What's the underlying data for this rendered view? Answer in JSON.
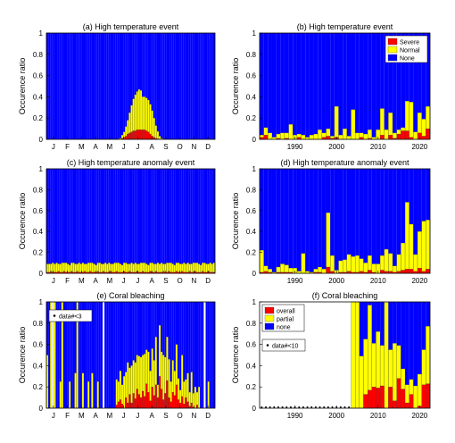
{
  "colors": {
    "red": "#ff0000",
    "yellow": "#ffff00",
    "blue": "#0000ff"
  },
  "chart_data": [
    {
      "type": "bar",
      "title": "(a) High temperature event",
      "ylabel": "Occurence ratio",
      "ylim": [
        0,
        1
      ],
      "yticks": [
        "0",
        "0.2",
        "0.4",
        "0.6",
        "0.8",
        "1"
      ],
      "month_labels": [
        "J",
        "F",
        "M",
        "A",
        "M",
        "J",
        "J",
        "A",
        "S",
        "O",
        "N",
        "D"
      ],
      "stacking": "red at bottom, yellow above red, blue fills remainder to 1",
      "series": [
        {
          "name": "Severe",
          "color": "red",
          "values": [
            0,
            0,
            0,
            0,
            0,
            0,
            0,
            0,
            0,
            0,
            0,
            0,
            0,
            0,
            0,
            0,
            0,
            0,
            0,
            0,
            0,
            0,
            0,
            0,
            0,
            0,
            0,
            0,
            0,
            0,
            0,
            0,
            0,
            0,
            0,
            0,
            0,
            0,
            0,
            0,
            0.01,
            0.02,
            0.03,
            0.05,
            0.06,
            0.07,
            0.08,
            0.08,
            0.09,
            0.09,
            0.09,
            0.09,
            0.09,
            0.08,
            0.07,
            0.05,
            0.03,
            0.02,
            0.01,
            0.005,
            0,
            0,
            0,
            0,
            0,
            0,
            0,
            0,
            0,
            0,
            0,
            0,
            0,
            0,
            0,
            0,
            0,
            0,
            0,
            0,
            0,
            0,
            0,
            0,
            0,
            0,
            0,
            0,
            0,
            0
          ]
        },
        {
          "name": "Normal",
          "color": "yellow",
          "values": [
            0,
            0,
            0,
            0,
            0,
            0,
            0,
            0,
            0,
            0,
            0,
            0,
            0,
            0,
            0,
            0,
            0,
            0,
            0,
            0,
            0,
            0,
            0,
            0,
            0,
            0,
            0,
            0,
            0,
            0,
            0,
            0,
            0,
            0,
            0,
            0,
            0,
            0,
            0.005,
            0.01,
            0.03,
            0.05,
            0.09,
            0.13,
            0.19,
            0.25,
            0.3,
            0.34,
            0.36,
            0.38,
            0.37,
            0.31,
            0.31,
            0.31,
            0.3,
            0.28,
            0.24,
            0.18,
            0.12,
            0.07,
            0.03,
            0.01,
            0.005,
            0,
            0,
            0,
            0,
            0,
            0,
            0,
            0,
            0,
            0,
            0,
            0,
            0,
            0,
            0,
            0,
            0,
            0,
            0,
            0,
            0,
            0,
            0,
            0,
            0,
            0,
            0
          ]
        }
      ]
    },
    {
      "type": "bar",
      "title": "(b) High temperature event",
      "ylabel": "Occurence ratio",
      "ylim": [
        0,
        1
      ],
      "yticks": [
        "0",
        "0.2",
        "0.4",
        "0.6",
        "0.8",
        "1"
      ],
      "x": [
        1982,
        1983,
        1984,
        1985,
        1986,
        1987,
        1988,
        1989,
        1990,
        1991,
        1992,
        1993,
        1994,
        1995,
        1996,
        1997,
        1998,
        1999,
        2000,
        2001,
        2002,
        2003,
        2004,
        2005,
        2006,
        2007,
        2008,
        2009,
        2010,
        2011,
        2012,
        2013,
        2014,
        2015,
        2016,
        2017,
        2018,
        2019,
        2020,
        2021,
        2022
      ],
      "xticks": [
        "1990",
        "2000",
        "2010",
        "2020"
      ],
      "legend": [
        "Severe",
        "Normal",
        "None"
      ],
      "legend_position": "top-right",
      "series": [
        {
          "name": "Severe",
          "color": "red",
          "values": [
            0.02,
            0.04,
            0,
            0,
            0.01,
            0,
            0.01,
            0,
            0,
            0.02,
            0,
            0,
            0,
            0,
            0,
            0.02,
            0.03,
            0.01,
            0.02,
            0,
            0,
            0,
            0,
            0,
            0.02,
            0,
            0.01,
            0,
            0,
            0.04,
            0,
            0.04,
            0.01,
            0.05,
            0.08,
            0.08,
            0.02,
            0,
            0.06,
            0.03,
            0.1
          ]
        },
        {
          "name": "Normal",
          "color": "yellow",
          "values": [
            0.02,
            0.07,
            0.06,
            0.02,
            0.04,
            0.06,
            0.05,
            0.14,
            0.04,
            0.03,
            0.04,
            0.02,
            0.04,
            0.05,
            0.09,
            0.04,
            0.07,
            0.02,
            0.29,
            0.04,
            0.1,
            0.03,
            0.28,
            0.06,
            0.04,
            0.05,
            0.08,
            0.02,
            0.09,
            0.25,
            0.09,
            0.21,
            0.05,
            0.04,
            0.03,
            0.28,
            0.33,
            0.07,
            0.19,
            0.16,
            0.21
          ]
        }
      ]
    },
    {
      "type": "bar",
      "title": "(c) High temperature anomaly event",
      "ylabel": "Occurence ratio",
      "ylim": [
        0,
        1
      ],
      "yticks": [
        "0",
        "0.2",
        "0.4",
        "0.6",
        "0.8",
        "1"
      ],
      "month_labels": [
        "J",
        "F",
        "M",
        "A",
        "M",
        "J",
        "J",
        "A",
        "S",
        "O",
        "N",
        "D"
      ],
      "series": [
        {
          "name": "Severe",
          "color": "red",
          "values": [
            0.01,
            0.01,
            0.02,
            0.01,
            0.01,
            0.01,
            0.02,
            0.01,
            0.01,
            0.02,
            0.01,
            0.01,
            0.01,
            0.02,
            0.01,
            0.01,
            0.02,
            0.01,
            0.01,
            0.01,
            0.02,
            0.01,
            0.01,
            0.02,
            0.01,
            0.01,
            0.01,
            0.02,
            0.01,
            0.01,
            0.02,
            0.01,
            0.01,
            0.01,
            0.02,
            0.01,
            0.01,
            0.02,
            0.01,
            0.01,
            0.01,
            0.02,
            0.01,
            0.01,
            0.02,
            0.01,
            0.01,
            0.01,
            0.02,
            0.01,
            0.01,
            0.02,
            0.01,
            0.01,
            0.01,
            0.02,
            0.01,
            0.01,
            0.02,
            0.01,
            0.01,
            0.01,
            0.02,
            0.01,
            0.01,
            0.02,
            0.01,
            0.01,
            0.01,
            0.02,
            0.01,
            0.01,
            0.02,
            0.01,
            0.01,
            0.01,
            0.02,
            0.01,
            0.01,
            0.02,
            0.01,
            0.01,
            0.01,
            0.02,
            0.01,
            0.01,
            0.02,
            0.01,
            0.01,
            0.01
          ]
        },
        {
          "name": "Normal",
          "color": "yellow",
          "values": [
            0.08,
            0.08,
            0.07,
            0.09,
            0.08,
            0.09,
            0.07,
            0.08,
            0.09,
            0.08,
            0.09,
            0.08,
            0.07,
            0.08,
            0.09,
            0.08,
            0.07,
            0.09,
            0.08,
            0.09,
            0.07,
            0.08,
            0.09,
            0.08,
            0.09,
            0.08,
            0.07,
            0.08,
            0.09,
            0.08,
            0.07,
            0.09,
            0.08,
            0.09,
            0.07,
            0.08,
            0.09,
            0.08,
            0.09,
            0.08,
            0.07,
            0.08,
            0.09,
            0.08,
            0.07,
            0.09,
            0.08,
            0.09,
            0.07,
            0.08,
            0.09,
            0.08,
            0.09,
            0.08,
            0.07,
            0.08,
            0.09,
            0.08,
            0.07,
            0.09,
            0.08,
            0.09,
            0.07,
            0.08,
            0.09,
            0.08,
            0.09,
            0.08,
            0.07,
            0.08,
            0.09,
            0.08,
            0.07,
            0.09,
            0.08,
            0.09,
            0.07,
            0.08,
            0.09,
            0.08,
            0.09,
            0.08,
            0.07,
            0.08,
            0.09,
            0.08,
            0.07,
            0.09,
            0.08,
            0.09
          ]
        }
      ]
    },
    {
      "type": "bar",
      "title": "(d) High temperature anomaly event",
      "ylabel": "Occurence ratio",
      "ylim": [
        0,
        1
      ],
      "yticks": [
        "0",
        "0.2",
        "0.4",
        "0.6",
        "0.8",
        "1"
      ],
      "x": [
        1982,
        1983,
        1984,
        1985,
        1986,
        1987,
        1988,
        1989,
        1990,
        1991,
        1992,
        1993,
        1994,
        1995,
        1996,
        1997,
        1998,
        1999,
        2000,
        2001,
        2002,
        2003,
        2004,
        2005,
        2006,
        2007,
        2008,
        2009,
        2010,
        2011,
        2012,
        2013,
        2014,
        2015,
        2016,
        2017,
        2018,
        2019,
        2020,
        2021,
        2022
      ],
      "xticks": [
        "1990",
        "2000",
        "2010",
        "2020"
      ],
      "series": [
        {
          "name": "Severe",
          "color": "red",
          "values": [
            0.01,
            0.02,
            0.01,
            0,
            0.01,
            0.01,
            0.01,
            0.01,
            0,
            0,
            0,
            0,
            0,
            0.01,
            0.01,
            0,
            0.06,
            0.02,
            0,
            0.01,
            0.01,
            0.02,
            0.01,
            0.01,
            0.02,
            0.01,
            0.03,
            0.01,
            0,
            0.03,
            0.02,
            0.02,
            0.01,
            0.02,
            0.03,
            0.04,
            0.04,
            0.02,
            0.05,
            0.02,
            0.04
          ]
        },
        {
          "name": "Normal",
          "color": "yellow",
          "values": [
            0.21,
            0.05,
            0.03,
            0.01,
            0.05,
            0.08,
            0.07,
            0.04,
            0.05,
            0.02,
            0.19,
            0.02,
            0.01,
            0.03,
            0.05,
            0.04,
            0.52,
            0.15,
            0.03,
            0.11,
            0.12,
            0.16,
            0.15,
            0.16,
            0.12,
            0.09,
            0.14,
            0.08,
            0.09,
            0.14,
            0.21,
            0.17,
            0.06,
            0.16,
            0.26,
            0.64,
            0.43,
            0.16,
            0.35,
            0.48,
            0.47
          ]
        }
      ]
    },
    {
      "type": "bar",
      "title": "(e) Coral bleaching",
      "ylabel": "Occurence ratio",
      "ylim": [
        0,
        1
      ],
      "yticks": [
        "0",
        "0.2",
        "0.4",
        "0.6",
        "0.8",
        "1"
      ],
      "month_labels": [
        "J",
        "F",
        "M",
        "A",
        "M",
        "J",
        "J",
        "A",
        "S",
        "O",
        "N",
        "D"
      ],
      "legend": [
        "data#<3"
      ],
      "legend_position": "top-left",
      "white_columns": [
        3,
        30,
        84
      ],
      "series": [
        {
          "name": "overall",
          "color": "red",
          "values": [
            0,
            0,
            0,
            0,
            0,
            0,
            0,
            0,
            0,
            0,
            0,
            0,
            0,
            0,
            0,
            0,
            0,
            0,
            0,
            0,
            0,
            0,
            0,
            0,
            0,
            0,
            0,
            0,
            0,
            0,
            0,
            0,
            0,
            0,
            0,
            0,
            0,
            0.03,
            0.06,
            0.08,
            0.04,
            0,
            0.1,
            0.05,
            0.13,
            0.05,
            0.14,
            0.09,
            0.18,
            0.13,
            0.1,
            0.16,
            0.11,
            0.23,
            0.15,
            0.07,
            0.2,
            0.12,
            0.22,
            0.1,
            0.3,
            0.18,
            0.08,
            0.14,
            0.26,
            0.1,
            0.06,
            0.15,
            0.12,
            0.22,
            0.08,
            0.05,
            0.11,
            0.04,
            0.1,
            0.06,
            0.02,
            0.05,
            0.01,
            0,
            0.03,
            0,
            0,
            0,
            0,
            0,
            0,
            0,
            0,
            0
          ]
        },
        {
          "name": "partial",
          "color": "yellow",
          "values": [
            0.5,
            0,
            1,
            0,
            1,
            0,
            0,
            0.25,
            1,
            0,
            0,
            0,
            0.25,
            0,
            0,
            0.33,
            1,
            0,
            0,
            0.33,
            0,
            0,
            0.25,
            0,
            0.33,
            0,
            0,
            0.25,
            0,
            0,
            0,
            0,
            0,
            0,
            0,
            0,
            0,
            0.24,
            0.19,
            0.27,
            0.18,
            0.3,
            0.24,
            0.38,
            0.25,
            0.35,
            0.31,
            0.34,
            0.32,
            0.36,
            0.38,
            0.34,
            0.4,
            0.32,
            0.38,
            0.28,
            0.36,
            0.33,
            0.45,
            0.12,
            0.48,
            0.35,
            0.42,
            0.34,
            0.41,
            0.36,
            0.19,
            0.3,
            0.23,
            0.38,
            0.2,
            0.12,
            0.39,
            0.21,
            0.17,
            0.27,
            0.13,
            0.29,
            0.13,
            0.2,
            0.12,
            0.2,
            0,
            0,
            0,
            0,
            0.25,
            0,
            0,
            0
          ]
        }
      ]
    },
    {
      "type": "bar",
      "title": "(f) Coral bleaching",
      "ylabel": "Occurence ratio",
      "ylim": [
        0,
        1
      ],
      "yticks": [
        "0",
        "0.2",
        "0.4",
        "0.6",
        "0.8",
        "1"
      ],
      "x": [
        1982,
        1983,
        1984,
        1985,
        1986,
        1987,
        1988,
        1989,
        1990,
        1991,
        1992,
        1993,
        1994,
        1995,
        1996,
        1997,
        1998,
        1999,
        2000,
        2001,
        2002,
        2003,
        2004,
        2005,
        2006,
        2007,
        2008,
        2009,
        2010,
        2011,
        2012,
        2013,
        2014,
        2015,
        2016,
        2017,
        2018,
        2019,
        2020,
        2021,
        2022
      ],
      "xticks": [
        "1990",
        "2000",
        "2010",
        "2020"
      ],
      "legend": [
        "overall",
        "partial",
        "none"
      ],
      "legend_position": "top-left",
      "note": "data#<10",
      "no_data_years": [
        1982,
        1983,
        1984,
        1985,
        1986,
        1987,
        1988,
        1989,
        1990,
        1991,
        1992,
        1993,
        1994,
        1995,
        1996,
        1997,
        1998,
        1999,
        2000,
        2001,
        2002,
        2003
      ],
      "series": [
        {
          "name": "overall",
          "color": "red",
          "values": [
            0,
            0,
            0,
            0,
            0,
            0,
            0,
            0,
            0,
            0,
            0,
            0,
            0,
            0,
            0,
            0,
            0,
            0,
            0,
            0,
            0,
            0,
            0,
            0,
            0,
            0.13,
            0.17,
            0.2,
            0.19,
            0.21,
            0,
            0.2,
            0.07,
            0.28,
            0.18,
            0.05,
            0.13,
            0,
            0.02,
            0.22,
            0.23
          ]
        },
        {
          "name": "partial",
          "color": "yellow",
          "values": [
            0,
            0,
            0,
            0,
            0,
            0,
            0,
            0,
            0,
            0,
            0,
            0,
            0,
            0,
            0,
            0,
            0,
            0,
            0,
            0,
            0,
            0,
            1,
            1,
            0.49,
            0.52,
            0.8,
            0.41,
            0.53,
            0.38,
            1,
            0.35,
            0.54,
            0.31,
            0.19,
            0.17,
            0.14,
            0.21,
            0.3,
            0.33,
            0.54
          ]
        }
      ]
    }
  ]
}
